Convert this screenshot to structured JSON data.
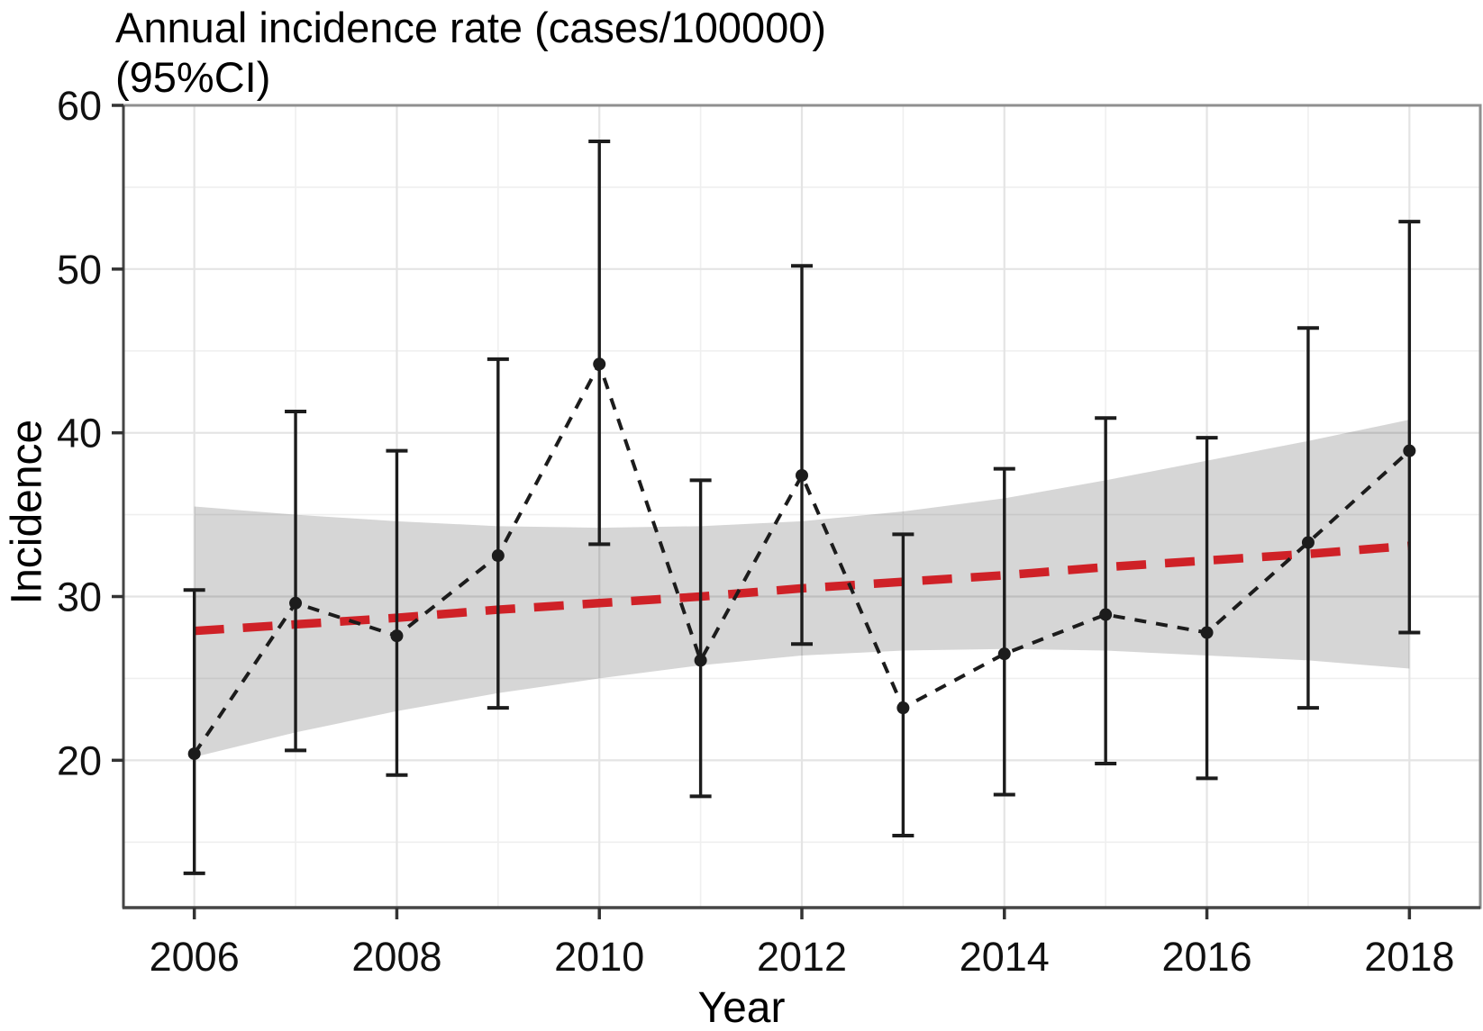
{
  "title_line1": "Annual incidence rate (cases/100000)",
  "title_line2": "(95%CI)",
  "axes": {
    "x_label": "Year",
    "y_label": "Incidence",
    "x_ticks": [
      2006,
      2008,
      2010,
      2012,
      2014,
      2016,
      2018
    ],
    "x_minor": [
      2007,
      2009,
      2011,
      2013,
      2015,
      2017
    ],
    "y_ticks": [
      20,
      30,
      40,
      50,
      60
    ],
    "y_minor": [
      15,
      25,
      35,
      45,
      55
    ],
    "x_range": [
      2005.3,
      2018.7
    ],
    "y_range": [
      11,
      60
    ],
    "grid": true
  },
  "chart_data": {
    "type": "line",
    "title": "Annual incidence rate (cases/100000) (95%CI)",
    "xlabel": "Year",
    "ylabel": "Incidence",
    "ylim": [
      11,
      60
    ],
    "x": [
      2006,
      2007,
      2008,
      2009,
      2010,
      2011,
      2012,
      2013,
      2014,
      2015,
      2016,
      2017,
      2018
    ],
    "series": [
      {
        "name": "annual-incidence",
        "style": "black-dashed-with-points-and-95ci-errorbars",
        "values": [
          20.4,
          29.6,
          27.6,
          32.5,
          44.2,
          26.1,
          37.4,
          23.2,
          26.5,
          28.9,
          27.8,
          33.3,
          38.9
        ],
        "ci_lower": [
          13.1,
          20.6,
          19.1,
          23.2,
          33.2,
          17.8,
          27.1,
          15.4,
          17.9,
          19.8,
          18.9,
          23.2,
          27.8
        ],
        "ci_upper": [
          30.4,
          41.3,
          38.9,
          44.5,
          57.8,
          37.1,
          50.2,
          33.8,
          37.8,
          40.9,
          39.7,
          46.4,
          52.9
        ]
      },
      {
        "name": "linear-trend",
        "style": "red-dashed",
        "values": [
          27.9,
          28.3,
          28.7,
          29.2,
          29.6,
          30.0,
          30.5,
          30.9,
          31.3,
          31.8,
          32.2,
          32.6,
          33.1
        ],
        "band_upper": [
          35.5,
          35.0,
          34.6,
          34.3,
          34.2,
          34.3,
          34.6,
          35.2,
          36.0,
          37.1,
          38.3,
          39.5,
          40.8
        ],
        "band_lower": [
          20.2,
          21.7,
          23.0,
          24.1,
          25.0,
          25.8,
          26.4,
          26.7,
          26.8,
          26.7,
          26.4,
          26.1,
          25.6
        ]
      }
    ],
    "legend": "none"
  },
  "colors": {
    "trend_red": "#cf2127",
    "band_fill_rgba": "rgba(0,0,0,0.16)",
    "data_black": "#1c1c1c",
    "grid_major": "#e4e4e4",
    "grid_minor": "#efefef",
    "border_light": "#8f8f8f",
    "border_dark": "#454545",
    "tick_mark": "#333333"
  }
}
